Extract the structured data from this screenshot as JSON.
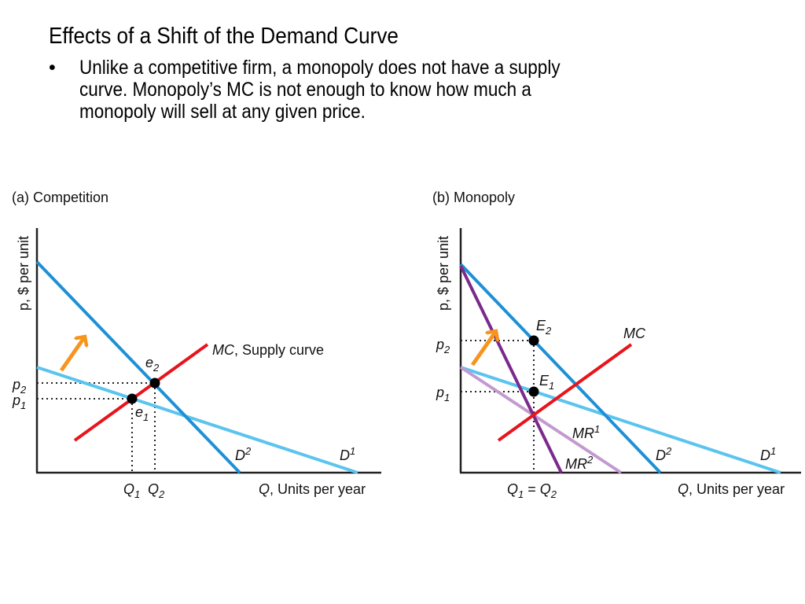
{
  "slide": {
    "title": "Effects of a Shift of the Demand Curve",
    "bullet_marker": "•",
    "bullet_lines": [
      "Unlike a competitive firm, a monopoly does not have a supply",
      "curve.  Monopoly’s MC is not enough to know how much a",
      "monopoly will sell at any given price."
    ]
  },
  "colors": {
    "D1": "#5bc4ee",
    "D2": "#1e90d6",
    "MC": "#e8141c",
    "MR1": "#c29ad0",
    "MR2": "#7b2a8c",
    "arrow": "#f7941d"
  },
  "panel_a": {
    "title": "(a) Competition",
    "y_axis_label": "p, $ per unit",
    "x_axis_label_var": "Q",
    "x_axis_label_rest": ", Units per year",
    "mc_label_var": "MC",
    "mc_label_rest": ", Supply curve",
    "e1": "e",
    "e1_sub": "1",
    "e2": "e",
    "e2_sub": "2",
    "p1": "p",
    "p1_sub": "1",
    "p2": "p",
    "p2_sub": "2",
    "q1": "Q",
    "q1_sub": "1",
    "q2": "Q",
    "q2_sub": "2",
    "d1": "D",
    "d1_sup": "1",
    "d2": "D",
    "d2_sup": "2"
  },
  "panel_b": {
    "title": "(b) Monopoly",
    "y_axis_label": "p, $ per unit",
    "x_axis_label_var": "Q",
    "x_axis_label_rest": ", Units per year",
    "mc_label": "MC",
    "E1": "E",
    "E1_sub": "1",
    "E2": "E",
    "E2_sub": "2",
    "p1": "p",
    "p1_sub": "1",
    "p2": "p",
    "p2_sub": "2",
    "q1": "Q",
    "q1_sub": "1",
    "eq": " = ",
    "q2": "Q",
    "q2_sub": "2",
    "mr1": "MR",
    "mr1_sup": "1",
    "mr2": "MR",
    "mr2_sup": "2",
    "d1": "D",
    "d1_sup": "1",
    "d2": "D",
    "d2_sup": "2"
  }
}
